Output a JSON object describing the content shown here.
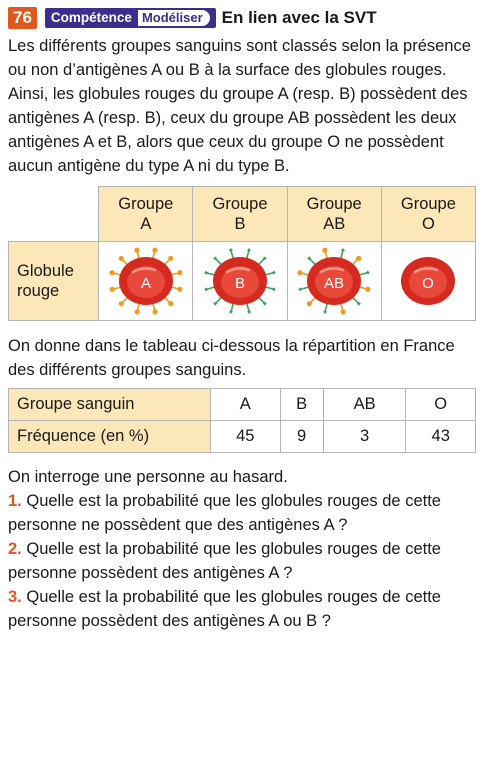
{
  "exercise": {
    "number": "76",
    "competence_label": "Compétence",
    "competence_value": "Modéliser",
    "link_text": "En lien avec la SVT"
  },
  "intro": "Les différents groupes sanguins sont classés selon la présence ou non d’antigènes A ou B à la surface des globules rouges. Ainsi, les globules rouges du groupe A (resp. B) possèdent des antigènes A (resp. B), ceux du groupe AB possèdent les deux antigènes A et B, alors que ceux du groupe O ne possèdent aucun antigène du type A ni du type B.",
  "groups_table": {
    "headers": [
      {
        "line1": "Groupe",
        "line2": "A"
      },
      {
        "line1": "Groupe",
        "line2": "B"
      },
      {
        "line1": "Groupe",
        "line2": "AB"
      },
      {
        "line1": "Groupe",
        "line2": "O"
      }
    ],
    "row_label_line1": "Globule",
    "row_label_line2": "rouge",
    "cell_labels": [
      "A",
      "B",
      "AB",
      "O"
    ]
  },
  "distribution_intro": "On donne dans le tableau ci-dessous la répartition en France des différents groupes sanguins.",
  "frequency_table": {
    "header_label": "Groupe sanguin",
    "row_label": "Fréquence (en %)",
    "groups": [
      "A",
      "B",
      "AB",
      "O"
    ],
    "frequencies": [
      "45",
      "9",
      "3",
      "43"
    ]
  },
  "questions_intro": "On interroge une personne au hasard.",
  "questions": [
    {
      "number": "1.",
      "text": "Quelle est la probabilité que les globules rouges de cette personne ne possèdent que des antigènes A ?"
    },
    {
      "number": "2.",
      "text": "Quelle est la probabilité que les globules rouges de cette personne possèdent des antigènes A ?"
    },
    {
      "number": "3.",
      "text": "Quelle est la probabilité que les globules rouges de cette personne possèdent des antigènes A ou B ?"
    }
  ],
  "colors": {
    "accent": "#e2571e",
    "competence": "#3d2d8c",
    "table_header": "#fbe7b8",
    "cell_red": "#d42a1f",
    "antigen_a": "#f29a1e",
    "antigen_b": "#3aa55a"
  }
}
